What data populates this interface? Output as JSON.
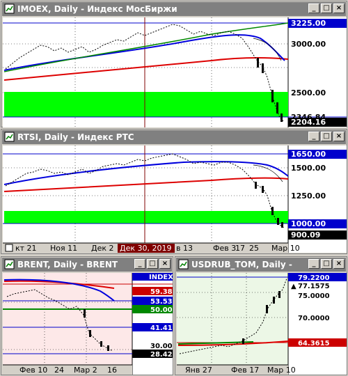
{
  "windows": {
    "imoex": {
      "title": "IMOEX, Daily - Индекс МосБиржи",
      "price_levels": [
        "3225.00",
        "3000.00",
        "2500.00"
      ],
      "hidden_level_label": "2346.84",
      "current_price": "2204.16"
    },
    "rtsi": {
      "title": "RTSI, Daily - Индекс РТС",
      "price_levels": [
        "1650.00",
        "1500.00",
        "1250.00",
        "1000.00"
      ],
      "current_price": "900.09",
      "time_axis": {
        "labels": [
          "кт 21",
          "Ноя 11",
          "Дек 2",
          "Дек 30, 2019",
          "в 13",
          "Фев 3",
          "17",
          "25",
          "Мар 10"
        ],
        "highlighted": "Дек 30, 2019"
      }
    },
    "brent": {
      "title": "BRENT, Daily - BRENT",
      "index_label": "INDEX",
      "price_levels": [
        "59.38",
        "53.53",
        "50.00",
        "41.41",
        "30.00"
      ],
      "current_price": "28.42",
      "time_axis": [
        "Фев 10",
        "24",
        "Мар 2",
        "16"
      ]
    },
    "usdrub": {
      "title": "USDRUB_TOM, Daily - USDR",
      "price_levels": [
        "79.2200",
        "77.1575",
        "75.0000",
        "70.0000",
        "64.3615"
      ],
      "time_axis": [
        "Янв 27",
        "Фев 17",
        "Мар 10"
      ]
    }
  },
  "buttons": {
    "minimize": "_",
    "maximize": "□",
    "close": "×"
  },
  "colors": {
    "title_inactive": "#808080",
    "support_zone": "#00ff00",
    "ma_blue": "#0000dd",
    "ma_red": "#dd0000",
    "ma_green": "#008800",
    "brent_bg": "#fde8e8",
    "usdrub_bg": "#ecf7e6",
    "current_tag": "#000000",
    "level_blue": "#0000cc",
    "level_red": "#cc0000",
    "level_green": "#008800"
  }
}
